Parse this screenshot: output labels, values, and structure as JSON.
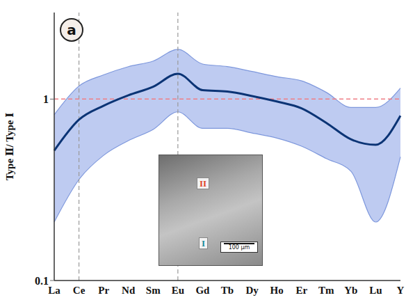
{
  "chart_data": {
    "type": "line",
    "panel_label": "a",
    "ylabel": "Type Ⅱ/ Type Ⅰ",
    "categories": [
      "La",
      "Ce",
      "Pr",
      "Nd",
      "Sm",
      "Eu",
      "Gd",
      "Tb",
      "Dy",
      "Ho",
      "Er",
      "Tm",
      "Yb",
      "Lu",
      "Y"
    ],
    "values": [
      0.52,
      0.77,
      0.92,
      1.05,
      1.17,
      1.38,
      1.12,
      1.1,
      1.04,
      0.97,
      0.89,
      0.74,
      0.6,
      0.56,
      0.81
    ],
    "color": "#0b3475",
    "band": {
      "low": [
        0.21,
        0.36,
        0.49,
        0.59,
        0.68,
        0.85,
        0.69,
        0.69,
        0.65,
        0.61,
        0.55,
        0.47,
        0.4,
        0.21,
        0.48
      ],
      "high": [
        0.82,
        1.18,
        1.36,
        1.51,
        1.62,
        1.88,
        1.56,
        1.51,
        1.42,
        1.33,
        1.26,
        1.09,
        0.9,
        0.9,
        1.15
      ],
      "color": "#b3c2ee"
    },
    "log": "y",
    "ylim": [
      0.1,
      3
    ],
    "yticks": [
      0.1,
      1
    ],
    "reference_lines": {
      "x": [
        "Ce",
        "Eu"
      ],
      "y": [
        1
      ]
    },
    "inset_labels": {
      "upper": "II",
      "lower": "I",
      "scale_bar": "100 µm"
    }
  }
}
